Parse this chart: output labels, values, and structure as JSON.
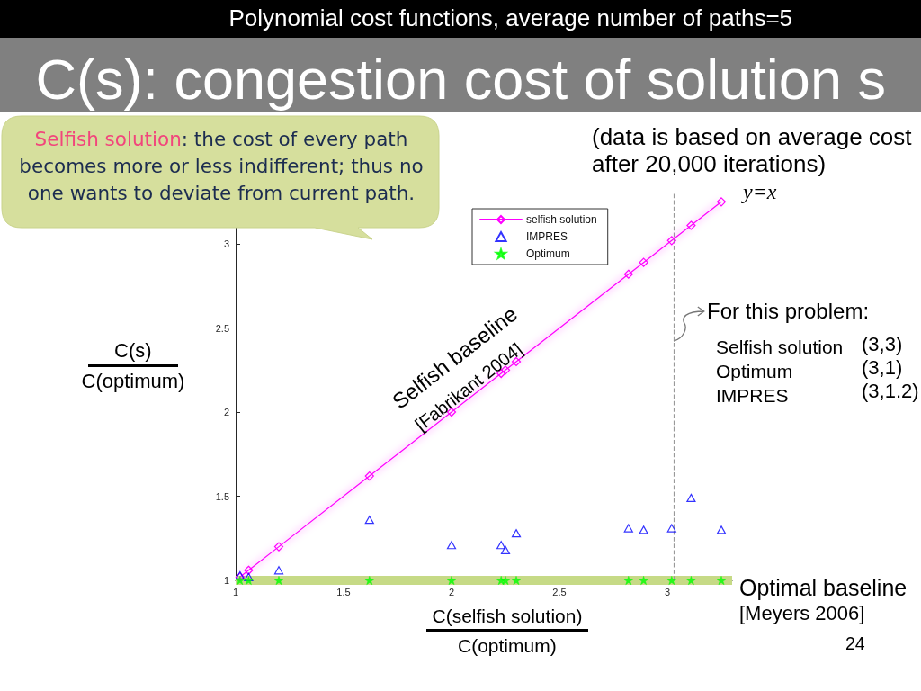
{
  "chart_data": {
    "type": "scatter",
    "title": "C(s): congestion cost of solution s",
    "subtitle": "Polynomial cost functions, average number of paths=5",
    "xlabel": "C(selfish solution)\nC(optimum)",
    "ylabel": "C(s)\nC(optimum)",
    "annotations": [
      "(data is based on average cost after 20,000 iterations)",
      "Selfish solution: the cost of every path becomes more or less indifferent; thus no one wants to deviate from current path.",
      "y=x",
      "Selfish baseline",
      "[Fabrikant 2004]",
      {
        "text": "For this problem:",
        "x": 3.03,
        "y": 2.42
      },
      "Selfish solution",
      "(3,3)",
      "Optimum",
      "(3,1)",
      "IMPRES",
      "(3,1.2)",
      "Optimal baseline",
      "[Meyers 2006]",
      "24"
    ],
    "x": [
      1.02,
      1.06,
      1.2,
      1.62,
      2.0,
      2.23,
      2.25,
      2.3,
      2.82,
      2.89,
      3.02,
      3.11,
      3.25
    ],
    "series": [
      {
        "name": "selfish solution",
        "type": "line",
        "color": "#ff00ff",
        "marker": "diamond",
        "values": [
          1.02,
          1.06,
          1.2,
          1.62,
          2.0,
          2.23,
          2.25,
          2.3,
          2.82,
          2.89,
          3.02,
          3.11,
          3.25
        ]
      },
      {
        "name": "IMPRES",
        "color": "#0000ff",
        "marker": "triangle",
        "values": [
          1.03,
          1.02,
          1.06,
          1.36,
          1.21,
          1.21,
          1.18,
          1.28,
          1.31,
          1.3,
          1.31,
          1.49,
          1.3
        ]
      },
      {
        "name": "Optimum",
        "color": "#00ff00",
        "marker": "star",
        "values": [
          1,
          1,
          1,
          1,
          1,
          1,
          1,
          1,
          1,
          1,
          1,
          1,
          1
        ]
      }
    ],
    "xlim": [
      1,
      3.3
    ],
    "ylim": [
      1,
      3.3
    ],
    "xticks": [
      1,
      1.5,
      2,
      2.5,
      3
    ],
    "yticks": [
      1,
      1.5,
      2,
      2.5,
      3
    ],
    "ref_lines": [
      {
        "axis": "y",
        "value": 1,
        "color": "#c6da86"
      },
      {
        "axis": "x",
        "value": 3.03,
        "color": "#999999",
        "line_style": "dashed"
      }
    ],
    "legend": "top"
  }
}
